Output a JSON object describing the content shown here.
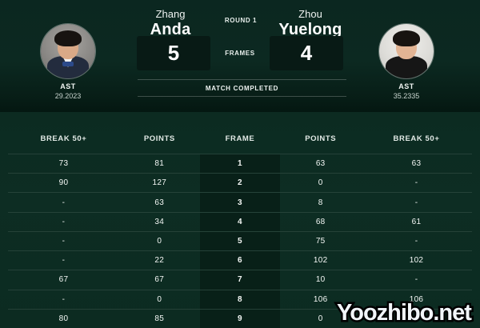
{
  "header": {
    "round_label": "ROUND 1",
    "frames_label": "FRAMES",
    "status_label": "MATCH COMPLETED",
    "player_left": {
      "first_name": "Zhang",
      "last_name": "Anda",
      "score": "5",
      "stat_label": "AST",
      "stat_value": "29.2023"
    },
    "player_right": {
      "first_name": "Zhou",
      "last_name": "Yuelong",
      "score": "4",
      "stat_label": "AST",
      "stat_value": "35.2335"
    }
  },
  "table": {
    "columns": [
      "BREAK 50+",
      "POINTS",
      "FRAME",
      "POINTS",
      "BREAK 50+"
    ],
    "rows": [
      [
        "73",
        "81",
        "1",
        "63",
        "63"
      ],
      [
        "90",
        "127",
        "2",
        "0",
        "-"
      ],
      [
        "-",
        "63",
        "3",
        "8",
        "-"
      ],
      [
        "-",
        "34",
        "4",
        "68",
        "61"
      ],
      [
        "-",
        "0",
        "5",
        "75",
        "-"
      ],
      [
        "-",
        "22",
        "6",
        "102",
        "102"
      ],
      [
        "67",
        "67",
        "7",
        "10",
        "-"
      ],
      [
        "-",
        "0",
        "8",
        "106",
        "106"
      ],
      [
        "80",
        "85",
        "9",
        "0",
        "-"
      ]
    ]
  },
  "watermark": "Yoozhibo.net",
  "colors": {
    "top_background": "#0b2720",
    "table_background": "#0d2d23",
    "frame_column": "#082018",
    "score_box": "#081a15",
    "text_primary": "#ffffff",
    "text_secondary": "#c9d4cf"
  }
}
